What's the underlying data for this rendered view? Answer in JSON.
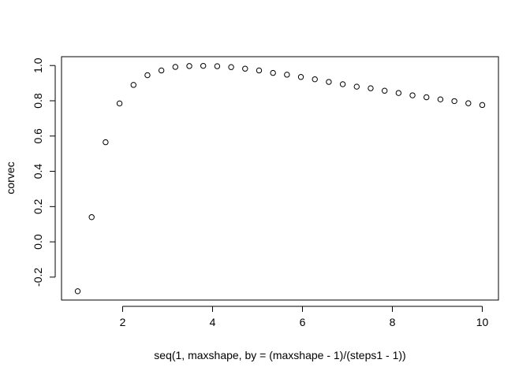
{
  "chart_data": {
    "type": "scatter",
    "title": "",
    "xlabel": "seq(1, maxshape, by = (maxshape - 1)/(steps1 - 1))",
    "ylabel": "corvec",
    "xlim": [
      0.64,
      10.36
    ],
    "ylim": [
      -0.33,
      1.05
    ],
    "xticks": [
      2,
      4,
      6,
      8,
      10
    ],
    "xtick_labels": [
      "2",
      "4",
      "6",
      "8",
      "10"
    ],
    "yticks": [
      -0.2,
      0,
      0.2,
      0.4,
      0.6,
      0.8,
      1.0
    ],
    "ytick_labels": [
      "-0.2",
      "0.0",
      "0.2",
      "0.4",
      "0.6",
      "0.8",
      "1.0"
    ],
    "grid": false,
    "legend": "none",
    "marker": "open-circle",
    "x": [
      1.0,
      1.3103,
      1.6207,
      1.931,
      2.2414,
      2.5517,
      2.8621,
      3.1724,
      3.4828,
      3.7931,
      4.1034,
      4.4138,
      4.7241,
      5.0345,
      5.3448,
      5.6552,
      5.9655,
      6.2759,
      6.5862,
      6.8966,
      7.2069,
      7.5172,
      7.8276,
      8.1379,
      8.4483,
      8.7586,
      9.069,
      9.3793,
      9.6897,
      10.0
    ],
    "y": [
      -0.28,
      0.14,
      0.565,
      0.785,
      0.89,
      0.945,
      0.972,
      0.992,
      0.997,
      0.998,
      0.996,
      0.991,
      0.982,
      0.972,
      0.958,
      0.948,
      0.935,
      0.922,
      0.907,
      0.894,
      0.88,
      0.871,
      0.857,
      0.844,
      0.831,
      0.82,
      0.808,
      0.798,
      0.786,
      0.776
    ]
  }
}
